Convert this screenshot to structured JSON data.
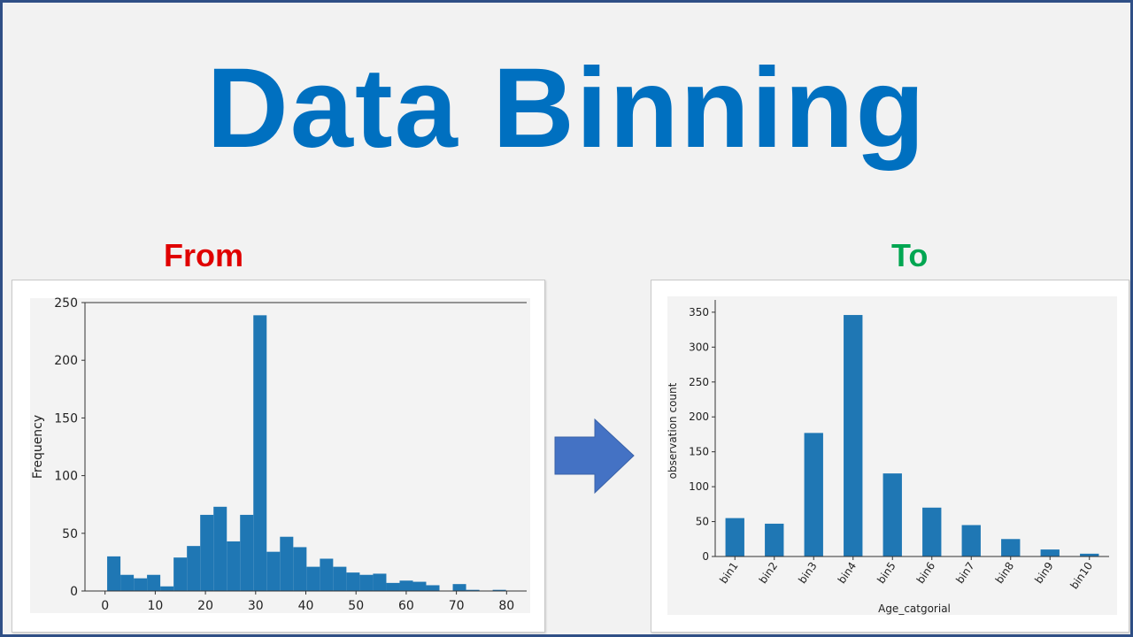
{
  "title": "Data Binning",
  "captions": {
    "from": "From",
    "to": "To"
  },
  "colors": {
    "title": "#0070c0",
    "from": "#e00000",
    "to": "#00a651",
    "bar": "#1f77b4",
    "arrow": "#4472c4"
  },
  "icons": {
    "arrow": "right-arrow-icon"
  },
  "chart_data": [
    {
      "type": "bar",
      "subtype": "histogram",
      "ylabel": "Frequency",
      "xlabel": "",
      "xlim": [
        -4,
        84
      ],
      "ylim": [
        0,
        250
      ],
      "xticks": [
        0,
        10,
        20,
        30,
        40,
        50,
        60,
        70,
        80
      ],
      "yticks": [
        0,
        50,
        100,
        150,
        200,
        250
      ],
      "bin_edges": [
        0.42,
        3.07,
        5.72,
        8.36,
        11.01,
        13.66,
        16.31,
        18.96,
        21.61,
        24.26,
        26.9,
        29.55,
        32.2,
        34.85,
        37.5,
        40.15,
        42.8,
        45.44,
        48.09,
        50.74,
        53.39,
        56.04,
        58.69,
        61.34,
        63.98,
        66.63,
        69.28,
        71.93,
        74.58,
        77.23,
        79.88
      ],
      "values": [
        30,
        14,
        11,
        14,
        4,
        29,
        39,
        66,
        73,
        43,
        66,
        239,
        34,
        47,
        38,
        21,
        28,
        21,
        16,
        14,
        15,
        7,
        9,
        8,
        5,
        0,
        6,
        1,
        0,
        1
      ],
      "grid": false
    },
    {
      "type": "bar",
      "categories": [
        "bin1",
        "bin2",
        "bin3",
        "bin4",
        "bin5",
        "bin6",
        "bin7",
        "bin8",
        "bin9",
        "bin10"
      ],
      "values": [
        55,
        47,
        177,
        346,
        119,
        70,
        45,
        25,
        10,
        4
      ],
      "xlabel": "Age_catgorial",
      "ylabel": "observation count",
      "ylim": [
        0,
        360
      ],
      "yticks": [
        0,
        50,
        100,
        150,
        200,
        250,
        300,
        350
      ],
      "grid": false
    }
  ]
}
